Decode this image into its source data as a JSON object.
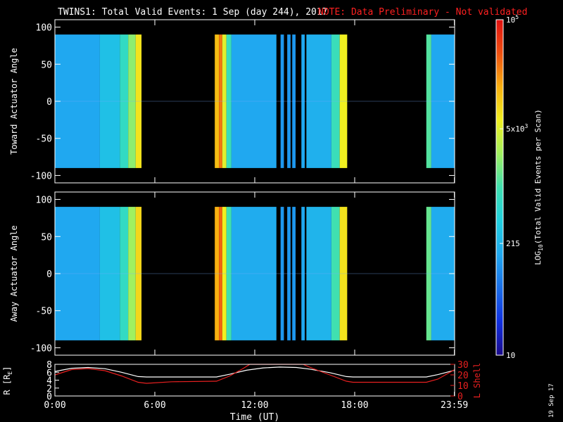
{
  "header": {
    "title": "TWINS1: Total Valid Events:  1 Sep (day 244), 2017",
    "note": "NOTE: Data Preliminary - Not validated"
  },
  "colors": {
    "background": "#000000",
    "axes": "#ffffff",
    "note": "#ff2020",
    "lshell": "#e82020",
    "radius": "#ffffff"
  },
  "colorbar": {
    "label": "LOG10(Total Valid Events per Scan)",
    "label_parts": [
      "LOG",
      "10",
      "(Total Valid Events per Scan)"
    ],
    "ticks": [
      {
        "label": "10",
        "value": 10
      },
      {
        "label": "215",
        "value": 215
      },
      {
        "label": "5x10^3",
        "value": 5000
      },
      {
        "label": "10^5",
        "value": 100000
      }
    ],
    "range": [
      10,
      100000
    ],
    "scale": "log",
    "stops": [
      "#1a0a8a",
      "#1030e0",
      "#1a6ee8",
      "#20a8f0",
      "#20d0e0",
      "#40e0b0",
      "#a0f060",
      "#f0f020",
      "#f8b010",
      "#f05010",
      "#e01010"
    ]
  },
  "chart_data": [
    {
      "type": "heatmap",
      "name": "toward",
      "ylabel": "Toward Actuator Angle",
      "ylim": [
        -110,
        110
      ],
      "yticks": [
        100,
        50,
        0,
        -50,
        -100
      ],
      "data_y_range": [
        -90,
        90
      ],
      "xlim": [
        0,
        24
      ],
      "segments": [
        {
          "start": 0.0,
          "end": 2.7,
          "level": 0.3
        },
        {
          "start": 2.7,
          "end": 3.9,
          "level": 0.36
        },
        {
          "start": 3.9,
          "end": 4.4,
          "level": 0.46
        },
        {
          "start": 4.4,
          "end": 4.85,
          "level": 0.58
        },
        {
          "start": 4.85,
          "end": 5.2,
          "level": 0.72
        },
        {
          "start": 9.6,
          "end": 9.85,
          "level": 0.78
        },
        {
          "start": 9.85,
          "end": 10.05,
          "level": 0.86
        },
        {
          "start": 10.05,
          "end": 10.3,
          "level": 0.68
        },
        {
          "start": 10.3,
          "end": 10.6,
          "level": 0.48
        },
        {
          "start": 10.6,
          "end": 13.3,
          "level": 0.3
        },
        {
          "start": 13.55,
          "end": 13.75,
          "level": 0.27
        },
        {
          "start": 13.95,
          "end": 14.15,
          "level": 0.27
        },
        {
          "start": 14.25,
          "end": 14.45,
          "level": 0.27
        },
        {
          "start": 14.8,
          "end": 15.0,
          "level": 0.3
        },
        {
          "start": 15.1,
          "end": 16.6,
          "level": 0.32
        },
        {
          "start": 16.6,
          "end": 17.1,
          "level": 0.48
        },
        {
          "start": 17.1,
          "end": 17.55,
          "level": 0.7
        },
        {
          "start": 22.3,
          "end": 22.6,
          "level": 0.52
        },
        {
          "start": 22.6,
          "end": 24.0,
          "level": 0.3
        }
      ]
    },
    {
      "type": "heatmap",
      "name": "away",
      "ylabel": "Away Actuator Angle",
      "ylim": [
        -110,
        110
      ],
      "yticks": [
        100,
        50,
        0,
        -50,
        -100
      ],
      "data_y_range": [
        -90,
        90
      ],
      "xlim": [
        0,
        24
      ],
      "segments": [
        {
          "start": 0.0,
          "end": 2.7,
          "level": 0.3
        },
        {
          "start": 2.7,
          "end": 3.9,
          "level": 0.36
        },
        {
          "start": 3.9,
          "end": 4.4,
          "level": 0.46
        },
        {
          "start": 4.4,
          "end": 4.85,
          "level": 0.6
        },
        {
          "start": 4.85,
          "end": 5.2,
          "level": 0.74
        },
        {
          "start": 9.6,
          "end": 9.85,
          "level": 0.8
        },
        {
          "start": 9.85,
          "end": 10.05,
          "level": 0.88
        },
        {
          "start": 10.05,
          "end": 10.3,
          "level": 0.7
        },
        {
          "start": 10.3,
          "end": 10.6,
          "level": 0.5
        },
        {
          "start": 10.6,
          "end": 13.3,
          "level": 0.31
        },
        {
          "start": 13.55,
          "end": 13.75,
          "level": 0.27
        },
        {
          "start": 13.95,
          "end": 14.15,
          "level": 0.27
        },
        {
          "start": 14.25,
          "end": 14.45,
          "level": 0.27
        },
        {
          "start": 14.8,
          "end": 15.0,
          "level": 0.3
        },
        {
          "start": 15.1,
          "end": 16.6,
          "level": 0.33
        },
        {
          "start": 16.6,
          "end": 17.1,
          "level": 0.5
        },
        {
          "start": 17.1,
          "end": 17.55,
          "level": 0.72
        },
        {
          "start": 22.3,
          "end": 22.6,
          "level": 0.54
        },
        {
          "start": 22.6,
          "end": 24.0,
          "level": 0.31
        }
      ]
    },
    {
      "type": "line",
      "name": "orbit",
      "ylabel": "R [Re]",
      "ylabel_parts": [
        "R [R",
        "E",
        "]"
      ],
      "y2label": "L Shell",
      "xlabel": "Time (UT)",
      "xlim": [
        0,
        24
      ],
      "xticks": [
        {
          "value": 0,
          "label": "0:00"
        },
        {
          "value": 6,
          "label": "6:00"
        },
        {
          "value": 12,
          "label": "12:00"
        },
        {
          "value": 18,
          "label": "18:00"
        },
        {
          "value": 23.983,
          "label": "23:59"
        }
      ],
      "ylim": [
        0,
        8
      ],
      "yticks": [
        8,
        6,
        4,
        2,
        0
      ],
      "y2lim": [
        0,
        30
      ],
      "y2ticks": [
        30,
        20,
        10,
        0
      ],
      "series": [
        {
          "axis": "left",
          "color": "#ffffff",
          "x": [
            0,
            1,
            2,
            3,
            4,
            5,
            5.5,
            9.7,
            10.5,
            11.5,
            12.5,
            13.5,
            14.5,
            15.3,
            16.5,
            17.5,
            17.9,
            22.3,
            23,
            24
          ],
          "y": [
            6.2,
            7.0,
            7.2,
            6.9,
            6.0,
            4.9,
            4.8,
            4.8,
            5.5,
            6.5,
            7.1,
            7.3,
            7.2,
            6.8,
            5.9,
            4.9,
            4.8,
            4.8,
            5.4,
            6.5
          ]
        },
        {
          "axis": "right",
          "color": "#e82020",
          "x": [
            0,
            1,
            2,
            3,
            4,
            5,
            5.5,
            7,
            9.7,
            10.5,
            11.3,
            11.7,
            14.9,
            15.5,
            16.5,
            17.5,
            17.9,
            22.3,
            23,
            24
          ],
          "y": [
            20,
            25,
            26,
            24,
            19,
            13,
            12,
            13.5,
            14,
            19,
            26,
            30,
            30,
            26,
            20,
            14,
            13,
            13,
            16,
            25
          ]
        }
      ]
    }
  ],
  "footer": {
    "date_stamp": "19 Sep 17"
  }
}
